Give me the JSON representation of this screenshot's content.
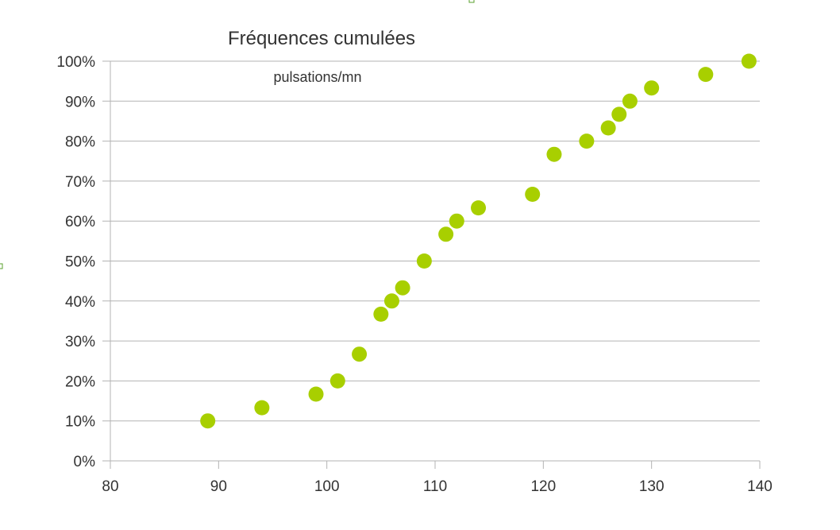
{
  "colors": {
    "marker": "#a8cf00",
    "grid": "#b3b3b3",
    "text": "#333333",
    "handle": "#5aa02c"
  },
  "chart_data": {
    "type": "scatter",
    "title": "Fréquences cumulées",
    "annotation": "pulsations/mn",
    "xlim": [
      80,
      140
    ],
    "ylim": [
      0,
      100
    ],
    "x_ticks": [
      "80",
      "90",
      "100",
      "110",
      "120",
      "130",
      "140"
    ],
    "y_ticks": [
      "0%",
      "10%",
      "20%",
      "30%",
      "40%",
      "50%",
      "60%",
      "70%",
      "80%",
      "90%",
      "100%"
    ],
    "grid": "horizontal",
    "legend": "none",
    "series": [
      {
        "points": [
          {
            "x": 89,
            "y": 10
          },
          {
            "x": 94,
            "y": 13.3
          },
          {
            "x": 99,
            "y": 16.7
          },
          {
            "x": 101,
            "y": 20
          },
          {
            "x": 103,
            "y": 26.7
          },
          {
            "x": 105,
            "y": 36.7
          },
          {
            "x": 106,
            "y": 40
          },
          {
            "x": 107,
            "y": 43.3
          },
          {
            "x": 109,
            "y": 50
          },
          {
            "x": 111,
            "y": 56.7
          },
          {
            "x": 112,
            "y": 60
          },
          {
            "x": 114,
            "y": 63.3
          },
          {
            "x": 119,
            "y": 66.7
          },
          {
            "x": 121,
            "y": 76.7
          },
          {
            "x": 124,
            "y": 80
          },
          {
            "x": 126,
            "y": 83.3
          },
          {
            "x": 127,
            "y": 86.7
          },
          {
            "x": 128,
            "y": 90
          },
          {
            "x": 130,
            "y": 93.3
          },
          {
            "x": 135,
            "y": 96.7
          },
          {
            "x": 139,
            "y": 100
          }
        ]
      }
    ]
  }
}
